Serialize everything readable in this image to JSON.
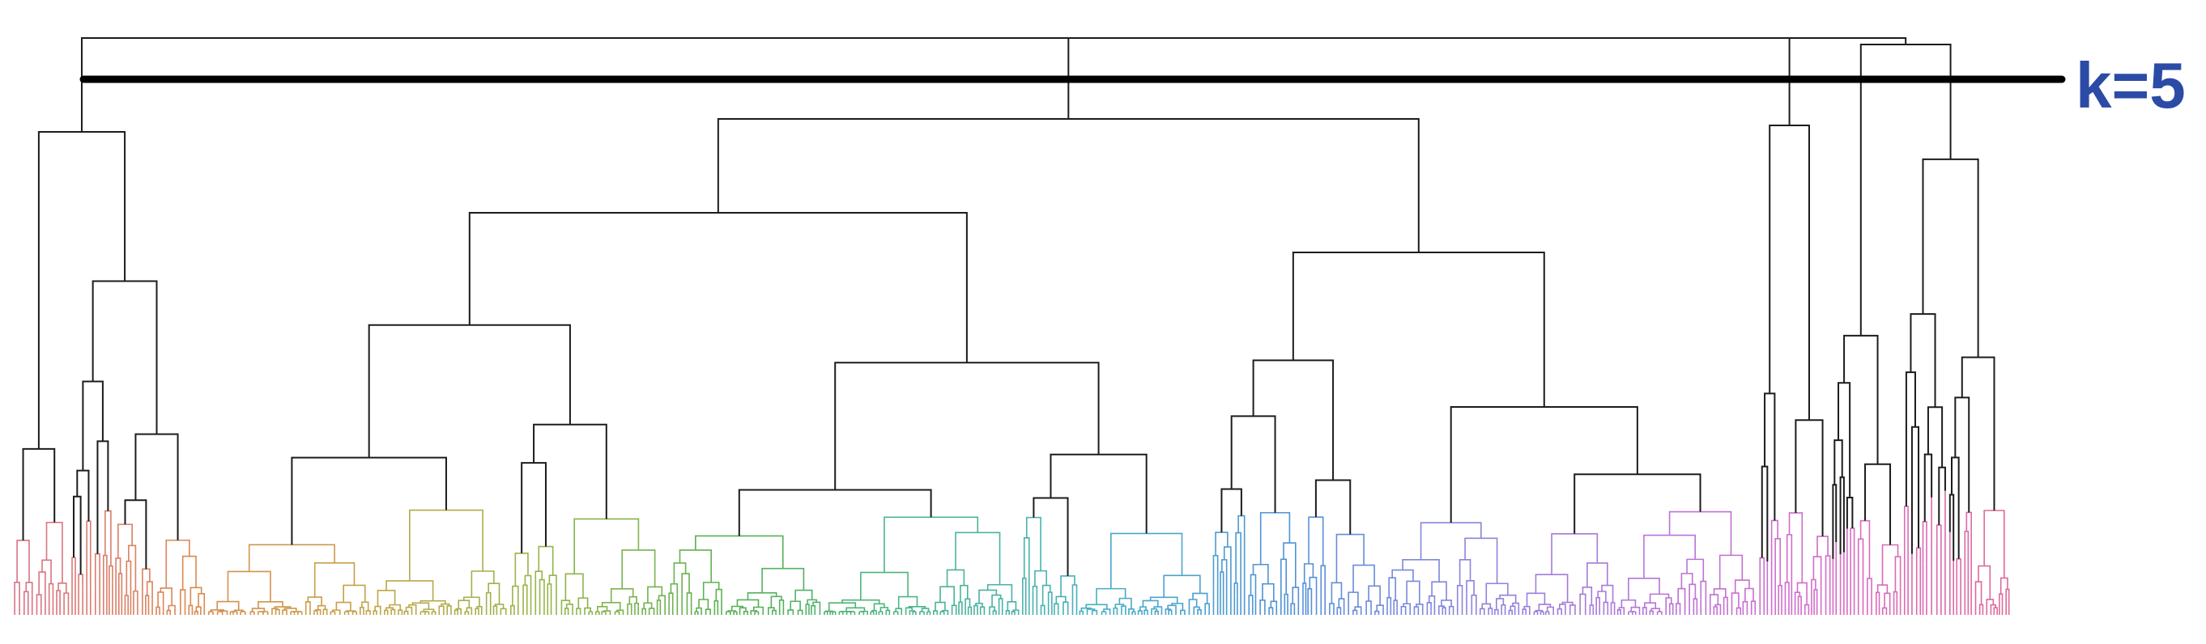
{
  "cut_label": "k=5",
  "colors": {
    "tree": "#1c1c1c",
    "cut_line": "#000000",
    "cut_label": "#2b4ba6",
    "leaf_palette": [
      "#d9708a",
      "#d98a4e",
      "#c2a548",
      "#93b54a",
      "#56b054",
      "#4bb58d",
      "#47aec4",
      "#4f92d6",
      "#8a85dd",
      "#b474d9",
      "#d66bc8",
      "#de6a98"
    ]
  }
}
